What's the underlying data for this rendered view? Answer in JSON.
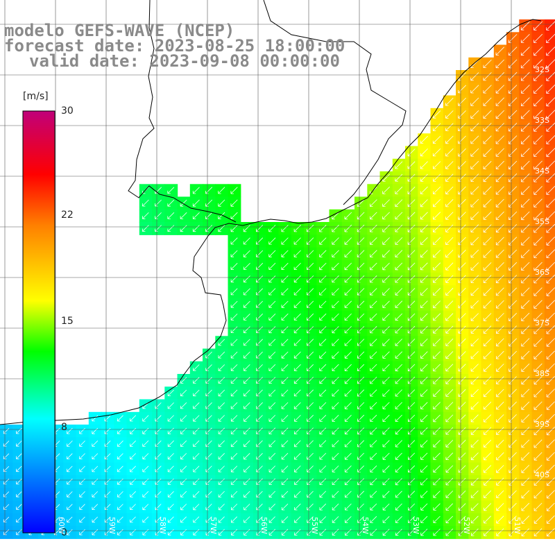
{
  "header": {
    "model_line": "modelo GEFS-WAVE (NCEP)",
    "forecast_line": "forecast date: 2023-08-25 18:00:00",
    "valid_line": "valid date: 2023-09-08 00:00:00"
  },
  "colorbar": {
    "unit": "[m/s]",
    "ticks": [
      "30",
      "22",
      "15",
      "8",
      "0"
    ],
    "tick_values": [
      30,
      22,
      15,
      8,
      0
    ],
    "range": [
      0,
      30
    ],
    "colors": [
      "#0000ff",
      "#00ffff",
      "#00ff00",
      "#ffff00",
      "#ff8000",
      "#ff0000",
      "#c0007a"
    ]
  },
  "grid": {
    "lat_labels": [
      "32S",
      "33S",
      "34S",
      "35S",
      "36S",
      "37S",
      "38S",
      "39S",
      "40S"
    ],
    "lon_labels": [
      "60W",
      "59W",
      "58W",
      "57W",
      "56W",
      "55W",
      "54W",
      "53W",
      "52W",
      "51W"
    ]
  },
  "colors": {
    "land": "#ffffff",
    "coast": "#000000",
    "grid_line": "#555555",
    "arrow": "#ffffff"
  },
  "wind_direction": "from north-east (arrows point south-west)"
}
